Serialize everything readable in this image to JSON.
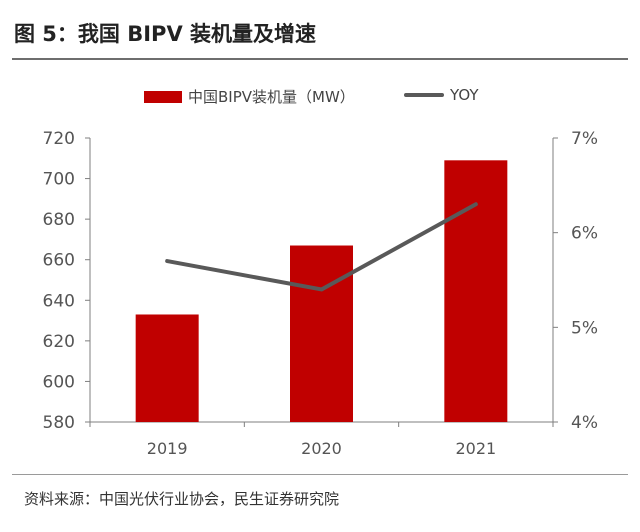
{
  "header": {
    "title": "图 5：我国 BIPV 装机量及增速"
  },
  "footer": {
    "source": "资料来源：中国光伏行业协会，民生证券研究院"
  },
  "colors": {
    "bar": "#c00000",
    "line": "#595959",
    "axis": "#7f7f7f",
    "text": "#555555"
  },
  "chart_data": {
    "type": "bar",
    "title": "我国 BIPV 装机量及增速",
    "categories": [
      "2019",
      "2020",
      "2021"
    ],
    "series": [
      {
        "name": "中国BIPV装机量（MW）",
        "type": "bar",
        "axis": "left",
        "values": [
          633,
          667,
          709
        ]
      },
      {
        "name": "YOY",
        "type": "line",
        "axis": "right",
        "values": [
          0.057,
          0.054,
          0.063
        ]
      }
    ],
    "left_axis": {
      "min": 580,
      "max": 720,
      "step": 20,
      "ticks": [
        "580",
        "600",
        "620",
        "640",
        "660",
        "680",
        "700",
        "720"
      ]
    },
    "right_axis": {
      "min": 0.04,
      "max": 0.07,
      "step": 0.01,
      "ticks": [
        "4%",
        "5%",
        "6%",
        "7%"
      ]
    },
    "legend_position": "top-center",
    "grid": false
  }
}
